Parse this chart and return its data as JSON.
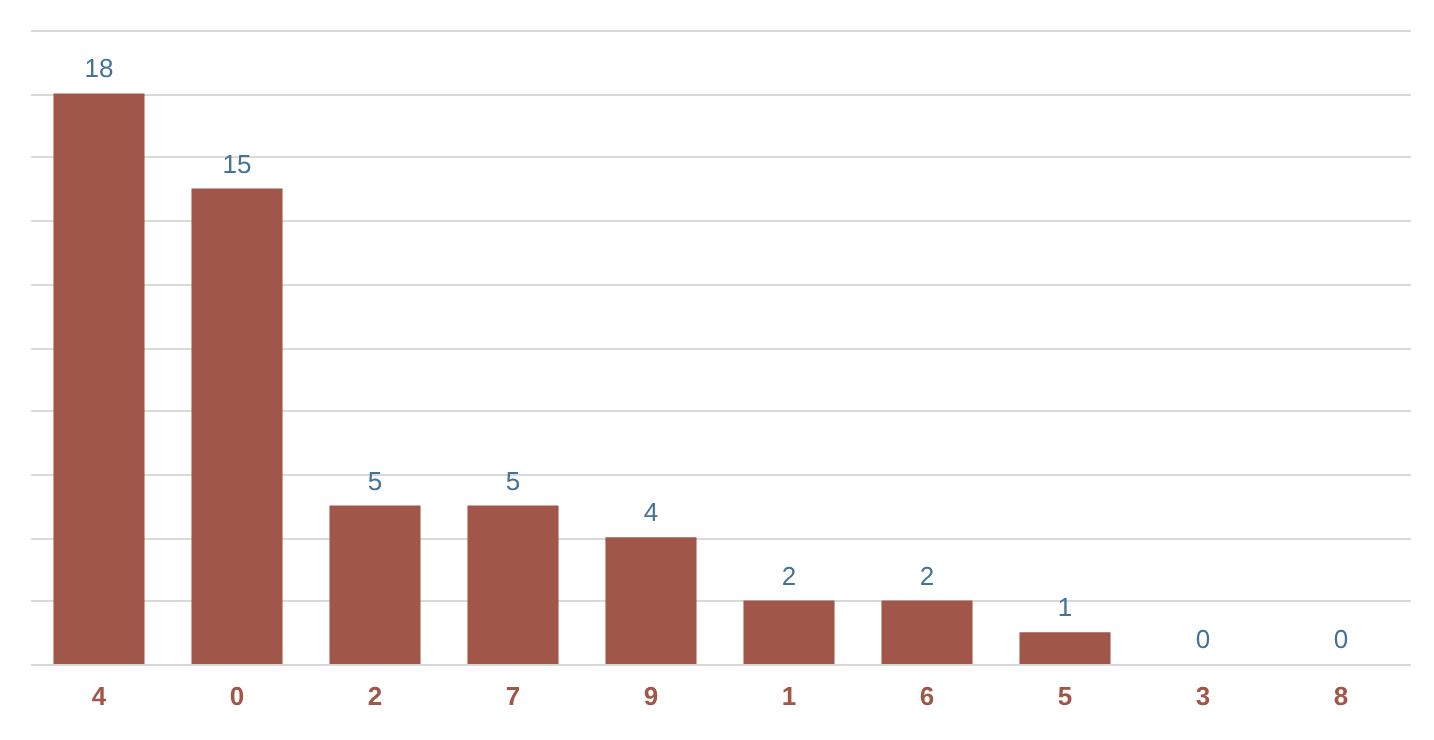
{
  "chart_data": {
    "type": "bar",
    "categories": [
      "4",
      "0",
      "2",
      "7",
      "9",
      "1",
      "6",
      "5",
      "3",
      "8"
    ],
    "values": [
      18,
      15,
      5,
      5,
      4,
      2,
      2,
      1,
      0,
      0
    ],
    "color": "#a0574a",
    "ylim": [
      0,
      20
    ],
    "yticks": [
      0,
      2,
      4,
      6,
      8,
      10,
      12,
      14,
      16,
      18,
      20
    ],
    "grid": "y",
    "tick_labels": "x",
    "data_labels": true
  }
}
